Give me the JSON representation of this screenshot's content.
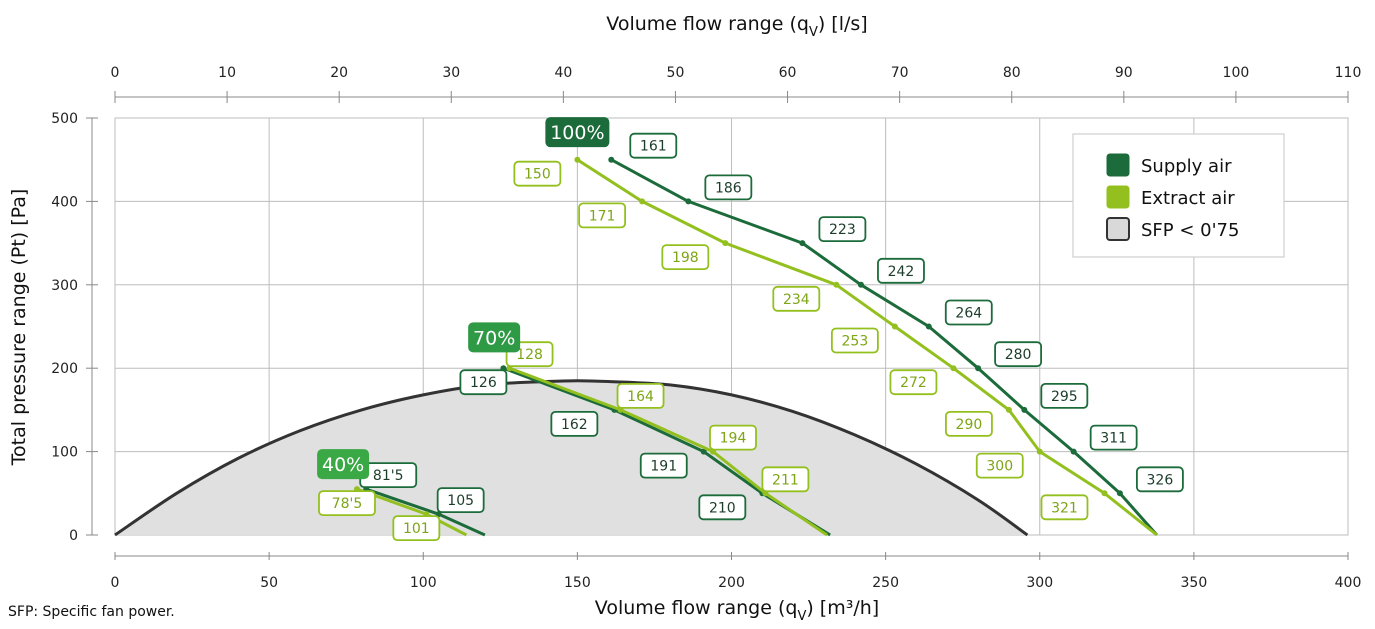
{
  "chart_data": {
    "type": "line",
    "top_axis": {
      "label": "Volume flow range (q",
      "label_sub": "V",
      "label_tail": ") [l/s]",
      "range": [
        0,
        110
      ],
      "ticks": [
        "0",
        "10",
        "20",
        "30",
        "40",
        "50",
        "60",
        "70",
        "80",
        "90",
        "100",
        "110"
      ]
    },
    "bottom_axis": {
      "label": "Volume flow range (q",
      "label_sub": "V",
      "label_tail": ") [m³/h]",
      "range": [
        0,
        400
      ],
      "ticks": [
        "0",
        "50",
        "100",
        "150",
        "200",
        "250",
        "300",
        "350",
        "400"
      ]
    },
    "y_axis": {
      "label": "Total pressure range (Pt) [Pa]",
      "range": [
        0,
        500
      ],
      "ticks": [
        "0",
        "100",
        "200",
        "300",
        "400",
        "500"
      ]
    },
    "grid": true,
    "legend": {
      "placement": "top-right",
      "items": [
        {
          "label": "Supply air",
          "color": "#1c6b3a"
        },
        {
          "label": "Extract air",
          "color": "#93c01f"
        },
        {
          "label": "SFP < 0'75",
          "color": "#d9d9d9"
        }
      ]
    },
    "footnote": "SFP: Specific fan power.",
    "colors": {
      "supply": "#1c6b3a",
      "extract": "#93c01f",
      "sfp_fill": "#e0e0e0",
      "sfp_line": "#333333"
    },
    "sfp_region": {
      "label": "SFP < 0'75",
      "x": [
        0,
        20,
        40,
        60,
        80,
        100,
        120,
        140,
        150,
        160,
        180,
        200,
        220,
        240,
        260,
        280,
        296
      ],
      "y": [
        0,
        50,
        92,
        125,
        150,
        168,
        180,
        184,
        185,
        184,
        180,
        168,
        148,
        120,
        85,
        42,
        0
      ]
    },
    "speed_labels": [
      {
        "text": "100%",
        "x": 150,
        "y": 483
      },
      {
        "text": "70%",
        "x": 123,
        "y": 237
      },
      {
        "text": "40%",
        "x": 74,
        "y": 85
      }
    ],
    "series": [
      {
        "name": "Supply air",
        "group": "100%",
        "x": [
          161,
          186,
          223,
          242,
          264,
          280,
          295,
          311,
          326,
          338
        ],
        "y": [
          450,
          400,
          350,
          300,
          250,
          200,
          150,
          100,
          50,
          0
        ],
        "labels": [
          {
            "text": "161",
            "x": 161,
            "y": 450,
            "dx": 42,
            "dy": -14
          },
          {
            "text": "186",
            "x": 186,
            "y": 400,
            "dx": 40,
            "dy": -14
          },
          {
            "text": "223",
            "x": 223,
            "y": 350,
            "dx": 40,
            "dy": -14
          },
          {
            "text": "242",
            "x": 242,
            "y": 300,
            "dx": 40,
            "dy": -14
          },
          {
            "text": "264",
            "x": 264,
            "y": 250,
            "dx": 40,
            "dy": -14
          },
          {
            "text": "280",
            "x": 280,
            "y": 200,
            "dx": 40,
            "dy": -14
          },
          {
            "text": "295",
            "x": 295,
            "y": 150,
            "dx": 40,
            "dy": -14
          },
          {
            "text": "311",
            "x": 311,
            "y": 100,
            "dx": 40,
            "dy": -14
          },
          {
            "text": "326",
            "x": 326,
            "y": 50,
            "dx": 40,
            "dy": -14
          }
        ]
      },
      {
        "name": "Extract air",
        "group": "100%",
        "x": [
          150,
          171,
          198,
          234,
          253,
          272,
          290,
          300,
          321,
          338
        ],
        "y": [
          450,
          400,
          350,
          300,
          250,
          200,
          150,
          100,
          50,
          0
        ],
        "labels": [
          {
            "text": "150",
            "x": 150,
            "y": 450,
            "dx": -40,
            "dy": 14
          },
          {
            "text": "171",
            "x": 171,
            "y": 400,
            "dx": -40,
            "dy": 14
          },
          {
            "text": "198",
            "x": 198,
            "y": 350,
            "dx": -40,
            "dy": 14
          },
          {
            "text": "234",
            "x": 234,
            "y": 300,
            "dx": -40,
            "dy": 14
          },
          {
            "text": "253",
            "x": 253,
            "y": 250,
            "dx": -40,
            "dy": 14
          },
          {
            "text": "272",
            "x": 272,
            "y": 200,
            "dx": -40,
            "dy": 14
          },
          {
            "text": "290",
            "x": 290,
            "y": 150,
            "dx": -40,
            "dy": 14
          },
          {
            "text": "300",
            "x": 300,
            "y": 100,
            "dx": -40,
            "dy": 14
          },
          {
            "text": "321",
            "x": 321,
            "y": 50,
            "dx": -40,
            "dy": 14
          }
        ]
      },
      {
        "name": "Supply air",
        "group": "70%",
        "x": [
          126,
          162,
          191,
          210,
          232
        ],
        "y": [
          200,
          150,
          100,
          50,
          0
        ],
        "labels": [
          {
            "text": "126",
            "x": 126,
            "y": 200,
            "dx": -20,
            "dy": 14
          },
          {
            "text": "162",
            "x": 162,
            "y": 150,
            "dx": -40,
            "dy": 14
          },
          {
            "text": "191",
            "x": 191,
            "y": 100,
            "dx": -40,
            "dy": 14
          },
          {
            "text": "210",
            "x": 210,
            "y": 50,
            "dx": -40,
            "dy": 14
          }
        ]
      },
      {
        "name": "Extract air",
        "group": "70%",
        "x": [
          128,
          164,
          194,
          211,
          231
        ],
        "y": [
          200,
          150,
          100,
          50,
          0
        ],
        "labels": [
          {
            "text": "128",
            "x": 128,
            "y": 200,
            "dx": 20,
            "dy": -14
          },
          {
            "text": "164",
            "x": 164,
            "y": 150,
            "dx": 20,
            "dy": -14
          },
          {
            "text": "194",
            "x": 194,
            "y": 100,
            "dx": 20,
            "dy": -14
          },
          {
            "text": "211",
            "x": 211,
            "y": 50,
            "dx": 20,
            "dy": -14
          }
        ]
      },
      {
        "name": "Supply air",
        "group": "40%",
        "x": [
          81.5,
          105,
          120
        ],
        "y": [
          55,
          25,
          0
        ],
        "labels": [
          {
            "text": "81'5",
            "x": 81.5,
            "y": 55,
            "dx": 22,
            "dy": -14
          },
          {
            "text": "105",
            "x": 105,
            "y": 25,
            "dx": 22,
            "dy": -14
          }
        ]
      },
      {
        "name": "Extract air",
        "group": "40%",
        "x": [
          78.5,
          101,
          114
        ],
        "y": [
          55,
          25,
          0
        ],
        "labels": [
          {
            "text": "78'5",
            "x": 78.5,
            "y": 55,
            "dx": -10,
            "dy": 14
          },
          {
            "text": "101",
            "x": 101,
            "y": 25,
            "dx": -10,
            "dy": 14
          }
        ]
      }
    ]
  }
}
